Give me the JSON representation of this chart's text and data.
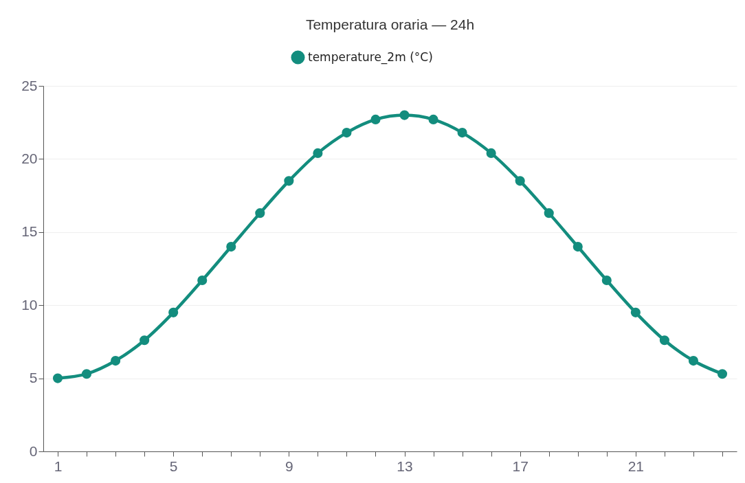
{
  "chart_data": {
    "type": "line",
    "title": "Temperatura oraria — 24h",
    "x": [
      1,
      2,
      3,
      4,
      5,
      6,
      7,
      8,
      9,
      10,
      11,
      12,
      13,
      14,
      15,
      16,
      17,
      18,
      19,
      20,
      21,
      22,
      23,
      24
    ],
    "series": [
      {
        "name": "temperature_2m (°C)",
        "color": "#138d7e",
        "values": [
          5,
          5.3,
          6.2,
          7.6,
          9.5,
          11.7,
          14,
          16.3,
          18.5,
          20.4,
          21.8,
          22.7,
          23,
          22.7,
          21.8,
          20.4,
          18.5,
          16.3,
          14,
          11.7,
          9.5,
          7.6,
          6.2,
          5.3
        ]
      }
    ],
    "xlim": [
      0.5,
      24.5
    ],
    "xticks": [
      1,
      {
        "value": 2,
        "label": null
      },
      {
        "value": 3,
        "label": null
      },
      {
        "value": 4,
        "label": null
      },
      5,
      {
        "value": 6,
        "label": null
      },
      {
        "value": 7,
        "label": null
      },
      {
        "value": 8,
        "label": null
      },
      9,
      {
        "value": 10,
        "label": null
      },
      {
        "value": 11,
        "label": null
      },
      {
        "value": 12,
        "label": null
      },
      13,
      {
        "value": 14,
        "label": null
      },
      {
        "value": 15,
        "label": null
      },
      {
        "value": 16,
        "label": null
      },
      17,
      {
        "value": 18,
        "label": null
      },
      {
        "value": 19,
        "label": null
      },
      {
        "value": 20,
        "label": null
      },
      21,
      {
        "value": 22,
        "label": null
      },
      {
        "value": 23,
        "label": null
      },
      {
        "value": 24,
        "label": null
      }
    ],
    "ylim": [
      0,
      25
    ],
    "yticks": [
      0,
      5,
      10,
      15,
      20,
      25
    ],
    "grid": "y",
    "legend": "top",
    "marker": "circle",
    "line_style": "solid"
  }
}
